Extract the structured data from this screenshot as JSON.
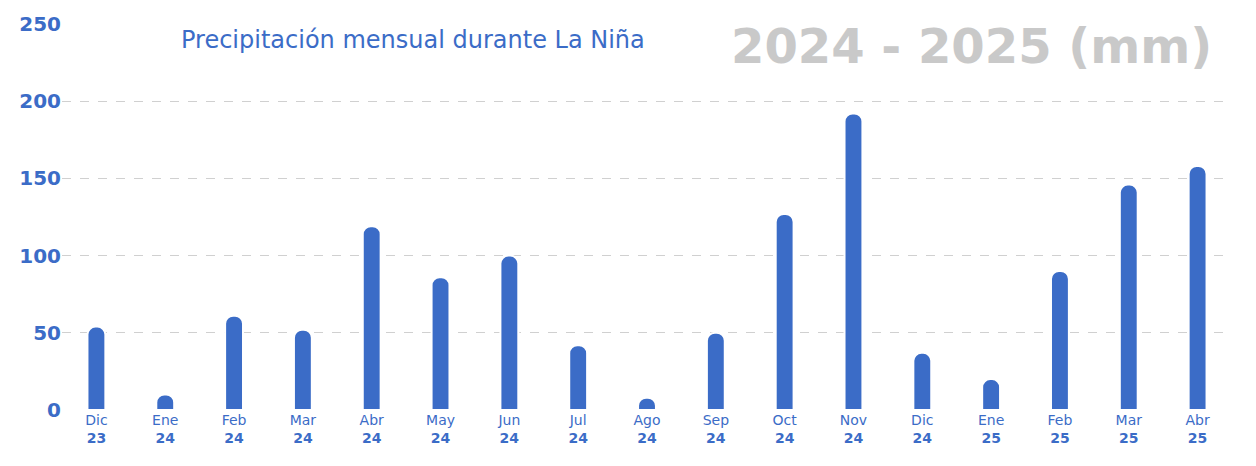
{
  "chart_data": {
    "type": "bar",
    "title": "Precipitación mensual durante La Niña",
    "subtitle": "2024 - 2025 (mm)",
    "categories": [
      "Dic 23",
      "Ene 24",
      "Feb 24",
      "Mar 24",
      "Abr 24",
      "May 24",
      "Jun 24",
      "Jul 24",
      "Ago 24",
      "Sep 24",
      "Oct 24",
      "Nov 24",
      "Dic 24",
      "Ene 25",
      "Feb 25",
      "Mar 25",
      "Abr 25"
    ],
    "values": [
      54,
      10,
      61,
      52,
      119,
      86,
      100,
      42,
      8,
      50,
      127,
      192,
      37,
      20,
      90,
      146,
      158
    ],
    "color": "#3b6cc7",
    "ylim": [
      0,
      250
    ],
    "yticks": [
      0,
      50,
      100,
      150,
      200,
      250
    ],
    "grid": true
  }
}
